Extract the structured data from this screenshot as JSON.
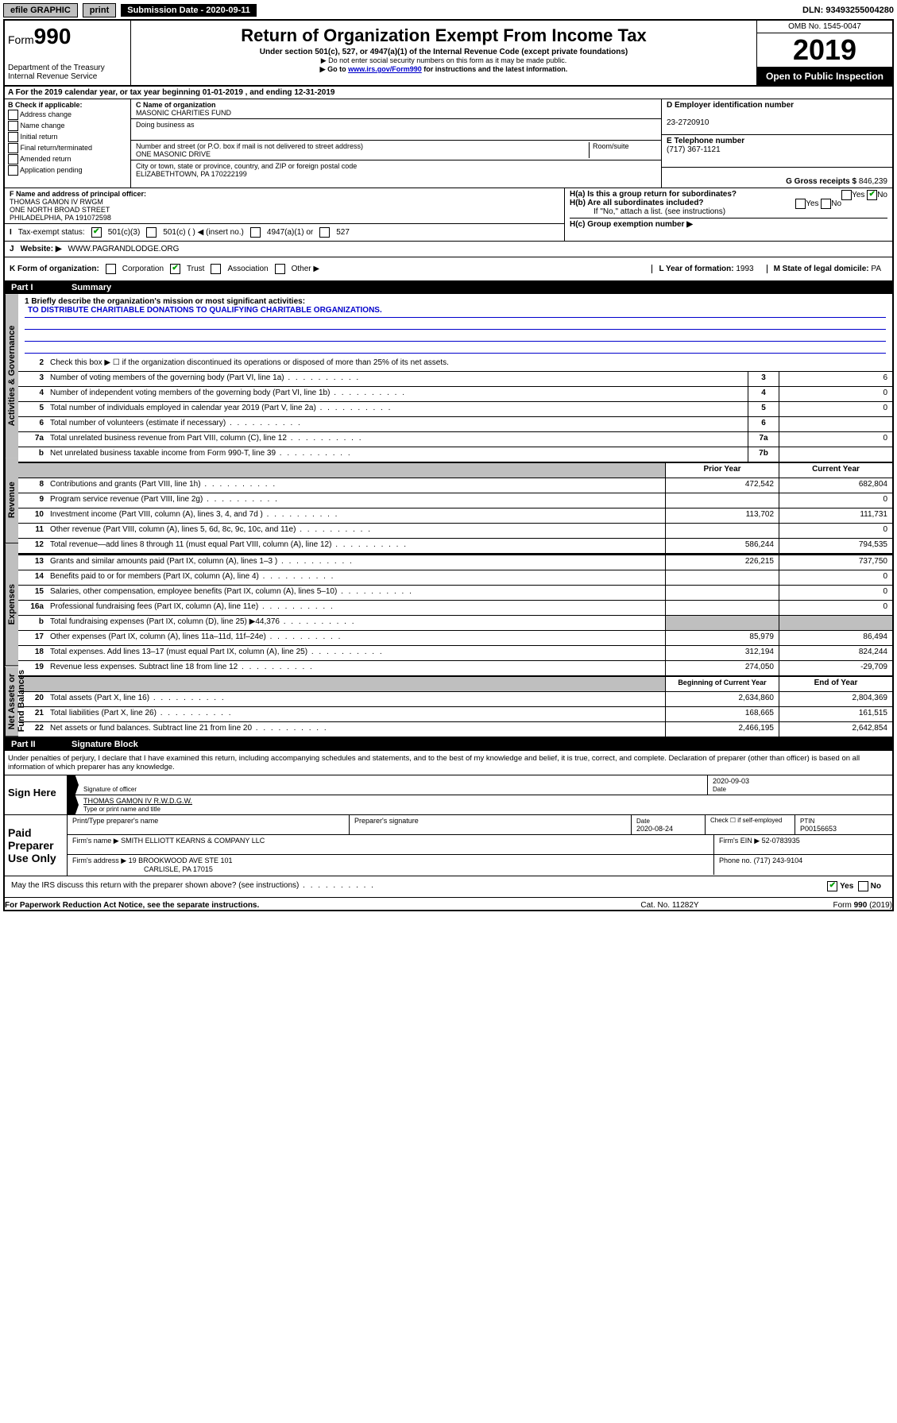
{
  "topbar": {
    "efile": "efile GRAPHIC",
    "print": "print",
    "submission_label": "Submission Date - 2020-09-11",
    "dln": "DLN: 93493255004280"
  },
  "header": {
    "form_word": "Form",
    "form_num": "990",
    "dept": "Department of the Treasury",
    "irs": "Internal Revenue Service",
    "title": "Return of Organization Exempt From Income Tax",
    "subtitle": "Under section 501(c), 527, or 4947(a)(1) of the Internal Revenue Code (except private foundations)",
    "note1": "▶ Do not enter social security numbers on this form as it may be made public.",
    "note2_a": "▶ Go to ",
    "note2_link": "www.irs.gov/Form990",
    "note2_b": " for instructions and the latest information.",
    "omb": "OMB No. 1545-0047",
    "year": "2019",
    "open": "Open to Public Inspection"
  },
  "rowA": "A For the 2019 calendar year, or tax year beginning 01-01-2019    , and ending 12-31-2019",
  "colB": {
    "hdr": "B Check if applicable:",
    "o1": "Address change",
    "o2": "Name change",
    "o3": "Initial return",
    "o4": "Final return/terminated",
    "o5": "Amended return",
    "o6": "Application pending"
  },
  "colC": {
    "name_lbl": "C Name of organization",
    "name": "MASONIC CHARITIES FUND",
    "dba_lbl": "Doing business as",
    "addr_lbl": "Number and street (or P.O. box if mail is not delivered to street address)",
    "room_lbl": "Room/suite",
    "addr": "ONE MASONIC DRIVE",
    "city_lbl": "City or town, state or province, country, and ZIP or foreign postal code",
    "city": "ELIZABETHTOWN, PA  170222199"
  },
  "colDE": {
    "d_lbl": "D Employer identification number",
    "d_val": "23-2720910",
    "e_lbl": "E Telephone number",
    "e_val": "(717) 367-1121",
    "g_lbl": "G Gross receipts $",
    "g_val": "846,239"
  },
  "rowF": {
    "lbl": "F Name and address of principal officer:",
    "l1": "THOMAS GAMON IV RWGM",
    "l2": "ONE NORTH BROAD STREET",
    "l3": "PHILADELPHIA, PA  191072598"
  },
  "rowH": {
    "ha": "H(a)  Is this a group return for subordinates?",
    "hb": "H(b)  Are all subordinates included?",
    "hb2": "If \"No,\" attach a list. (see instructions)",
    "hc": "H(c)  Group exemption number ▶",
    "yes": "Yes",
    "no": "No"
  },
  "taxI": {
    "lbl": "Tax-exempt status:",
    "o1": "501(c)(3)",
    "o2": "501(c) (  ) ◀ (insert no.)",
    "o3": "4947(a)(1) or",
    "o4": "527"
  },
  "rowJ": {
    "lbl": "J",
    "web_lbl": "Website: ▶",
    "web": "WWW.PAGRANDLODGE.ORG"
  },
  "rowK": {
    "lbl": "K Form of organization:",
    "o1": "Corporation",
    "o2": "Trust",
    "o3": "Association",
    "o4": "Other ▶",
    "l_lbl": "L Year of formation:",
    "l_val": "1993",
    "m_lbl": "M State of legal domicile:",
    "m_val": "PA"
  },
  "part1": {
    "hdr_num": "Part I",
    "hdr_txt": "Summary",
    "vtab_gov": "Activities & Governance",
    "vtab_rev": "Revenue",
    "vtab_exp": "Expenses",
    "vtab_net": "Net Assets or Fund Balances",
    "q1_lbl": "1  Briefly describe the organization's mission or most significant activities:",
    "q1_ans": "TO DISTRIBUTE CHARITIABLE DONATIONS TO QUALIFYING CHARITABLE ORGANIZATIONS.",
    "q2": "Check this box ▶ ☐  if the organization discontinued its operations or disposed of more than 25% of its net assets.",
    "lines_gov": [
      {
        "n": "3",
        "t": "Number of voting members of the governing body (Part VI, line 1a)",
        "b": "3",
        "v": "6"
      },
      {
        "n": "4",
        "t": "Number of independent voting members of the governing body (Part VI, line 1b)",
        "b": "4",
        "v": "0"
      },
      {
        "n": "5",
        "t": "Total number of individuals employed in calendar year 2019 (Part V, line 2a)",
        "b": "5",
        "v": "0"
      },
      {
        "n": "6",
        "t": "Total number of volunteers (estimate if necessary)",
        "b": "6",
        "v": ""
      },
      {
        "n": "7a",
        "t": "Total unrelated business revenue from Part VIII, column (C), line 12",
        "b": "7a",
        "v": "0"
      },
      {
        "n": "b",
        "t": "Net unrelated business taxable income from Form 990-T, line 39",
        "b": "7b",
        "v": ""
      }
    ],
    "col_prior": "Prior Year",
    "col_curr": "Current Year",
    "col_begin": "Beginning of Current Year",
    "col_end": "End of Year",
    "lines_rev": [
      {
        "n": "8",
        "t": "Contributions and grants (Part VIII, line 1h)",
        "p": "472,542",
        "c": "682,804"
      },
      {
        "n": "9",
        "t": "Program service revenue (Part VIII, line 2g)",
        "p": "",
        "c": "0"
      },
      {
        "n": "10",
        "t": "Investment income (Part VIII, column (A), lines 3, 4, and 7d )",
        "p": "113,702",
        "c": "111,731"
      },
      {
        "n": "11",
        "t": "Other revenue (Part VIII, column (A), lines 5, 6d, 8c, 9c, 10c, and 11e)",
        "p": "",
        "c": "0"
      },
      {
        "n": "12",
        "t": "Total revenue—add lines 8 through 11 (must equal Part VIII, column (A), line 12)",
        "p": "586,244",
        "c": "794,535"
      }
    ],
    "lines_exp": [
      {
        "n": "13",
        "t": "Grants and similar amounts paid (Part IX, column (A), lines 1–3 )",
        "p": "226,215",
        "c": "737,750"
      },
      {
        "n": "14",
        "t": "Benefits paid to or for members (Part IX, column (A), line 4)",
        "p": "",
        "c": "0"
      },
      {
        "n": "15",
        "t": "Salaries, other compensation, employee benefits (Part IX, column (A), lines 5–10)",
        "p": "",
        "c": "0"
      },
      {
        "n": "16a",
        "t": "Professional fundraising fees (Part IX, column (A), line 11e)",
        "p": "",
        "c": "0"
      },
      {
        "n": "b",
        "t": "Total fundraising expenses (Part IX, column (D), line 25) ▶44,376",
        "p": "GREY",
        "c": "GREY"
      },
      {
        "n": "17",
        "t": "Other expenses (Part IX, column (A), lines 11a–11d, 11f–24e)",
        "p": "85,979",
        "c": "86,494"
      },
      {
        "n": "18",
        "t": "Total expenses. Add lines 13–17 (must equal Part IX, column (A), line 25)",
        "p": "312,194",
        "c": "824,244"
      },
      {
        "n": "19",
        "t": "Revenue less expenses. Subtract line 18 from line 12",
        "p": "274,050",
        "c": "-29,709"
      }
    ],
    "lines_net": [
      {
        "n": "20",
        "t": "Total assets (Part X, line 16)",
        "p": "2,634,860",
        "c": "2,804,369"
      },
      {
        "n": "21",
        "t": "Total liabilities (Part X, line 26)",
        "p": "168,665",
        "c": "161,515"
      },
      {
        "n": "22",
        "t": "Net assets or fund balances. Subtract line 21 from line 20",
        "p": "2,466,195",
        "c": "2,642,854"
      }
    ]
  },
  "part2": {
    "hdr_num": "Part II",
    "hdr_txt": "Signature Block",
    "perjury": "Under penalties of perjury, I declare that I have examined this return, including accompanying schedules and statements, and to the best of my knowledge and belief, it is true, correct, and complete. Declaration of preparer (other than officer) is based on all information of which preparer has any knowledge.",
    "sign_here": "Sign Here",
    "sig_officer": "Signature of officer",
    "sig_date": "2020-09-03",
    "date_lbl": "Date",
    "officer_name": "THOMAS GAMON IV  R.W.D.G.W.",
    "type_name": "Type or print name and title",
    "paid": "Paid Preparer Use Only",
    "prep_name_lbl": "Print/Type preparer's name",
    "prep_sig_lbl": "Preparer's signature",
    "prep_date_lbl": "Date",
    "prep_date": "2020-08-24",
    "check_lbl": "Check ☐ if self-employed",
    "ptin_lbl": "PTIN",
    "ptin": "P00156653",
    "firm_name_lbl": "Firm's name    ▶",
    "firm_name": "SMITH ELLIOTT KEARNS & COMPANY LLC",
    "firm_ein_lbl": "Firm's EIN ▶",
    "firm_ein": "52-0783935",
    "firm_addr_lbl": "Firm's address ▶",
    "firm_addr1": "19 BROOKWOOD AVE STE 101",
    "firm_addr2": "CARLISLE, PA  17015",
    "phone_lbl": "Phone no.",
    "phone": "(717) 243-9104",
    "discuss": "May the IRS discuss this return with the preparer shown above? (see instructions)",
    "yes": "Yes",
    "no": "No"
  },
  "footer": {
    "l": "For Paperwork Reduction Act Notice, see the separate instructions.",
    "m": "Cat. No. 11282Y",
    "r": "Form 990 (2019)"
  }
}
